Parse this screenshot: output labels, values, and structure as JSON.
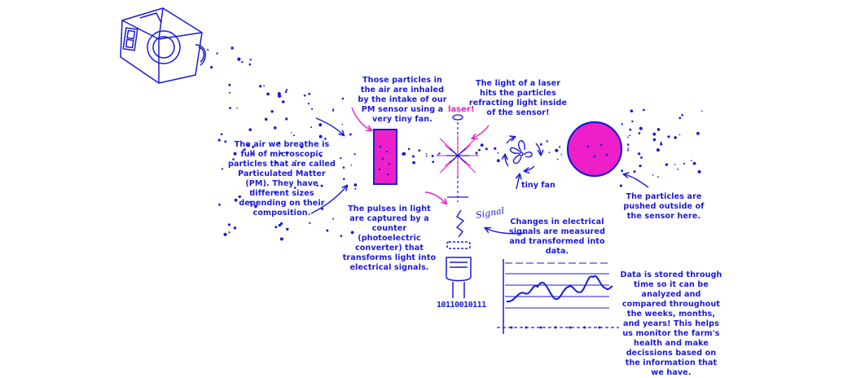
{
  "colors": {
    "ink": "#1a1ad6",
    "accent": "#ee1fc8"
  },
  "annotations": {
    "air": "The air we breathe is full of microscopic particles that are called Particulated Matter (PM). They have different sizes depending on their composition.",
    "inhaled": "Those particles in the air are inhaled by the intake of our PM sensor using a very tiny fan.",
    "laser_hits": "The light of a laser hits the particles refracting light inside of the sensor!",
    "pulses": "The pulses in light are captured by a counter (photoelectric converter) that transforms light into electrical signals.",
    "changes": "Changes in electrical signals are measured and transformed into data.",
    "pushed": "The particles are pushed outside of the sensor here.",
    "stored": "Data is stored through time so it can be analyzed and compared throughout the weeks, months, and years! This helps us monitor the farm's health and make decissions based on the information that we have."
  },
  "labels": {
    "laser": "laser!",
    "tiny_fan": "tiny fan",
    "signal": "Signal",
    "binary": "10110010111"
  },
  "icons": {
    "sensor_device": "pm-sensor-device-icon",
    "fan": "fan-icon",
    "photodetector": "photodetector-icon"
  }
}
